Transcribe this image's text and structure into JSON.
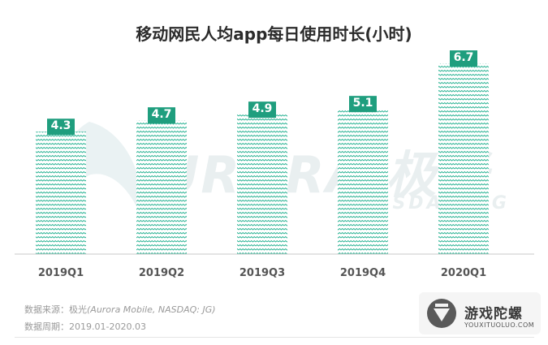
{
  "chart_data": {
    "type": "bar",
    "title": "移动网民人均app每日使用时长(小时)",
    "categories": [
      "2019Q1",
      "2019Q2",
      "2019Q3",
      "2019Q4",
      "2020Q1"
    ],
    "values": [
      4.3,
      4.7,
      4.9,
      5.1,
      6.7
    ],
    "value_labels": [
      "4.3",
      "4.7",
      "4.9",
      "5.1",
      "6.7"
    ],
    "xlabel": "",
    "ylabel": "",
    "ylim": [
      0,
      7.5
    ],
    "grid": false,
    "bar_color": "#2bb394",
    "label_box_color": "#1f9e7e",
    "label_text_color": "#ffffff"
  },
  "source": {
    "line1_prefix": "数据来源：极光",
    "line1_en": "(Aurora Mobile, NASDAQ: JG)",
    "line2": "数据周期：2019.01-2020.03"
  },
  "watermark": {
    "main": "URORA 极光",
    "sub": "NASDAQ: JG"
  },
  "logo": {
    "name": "游戏陀螺",
    "url": "YOUXITUOLUO.COM"
  }
}
